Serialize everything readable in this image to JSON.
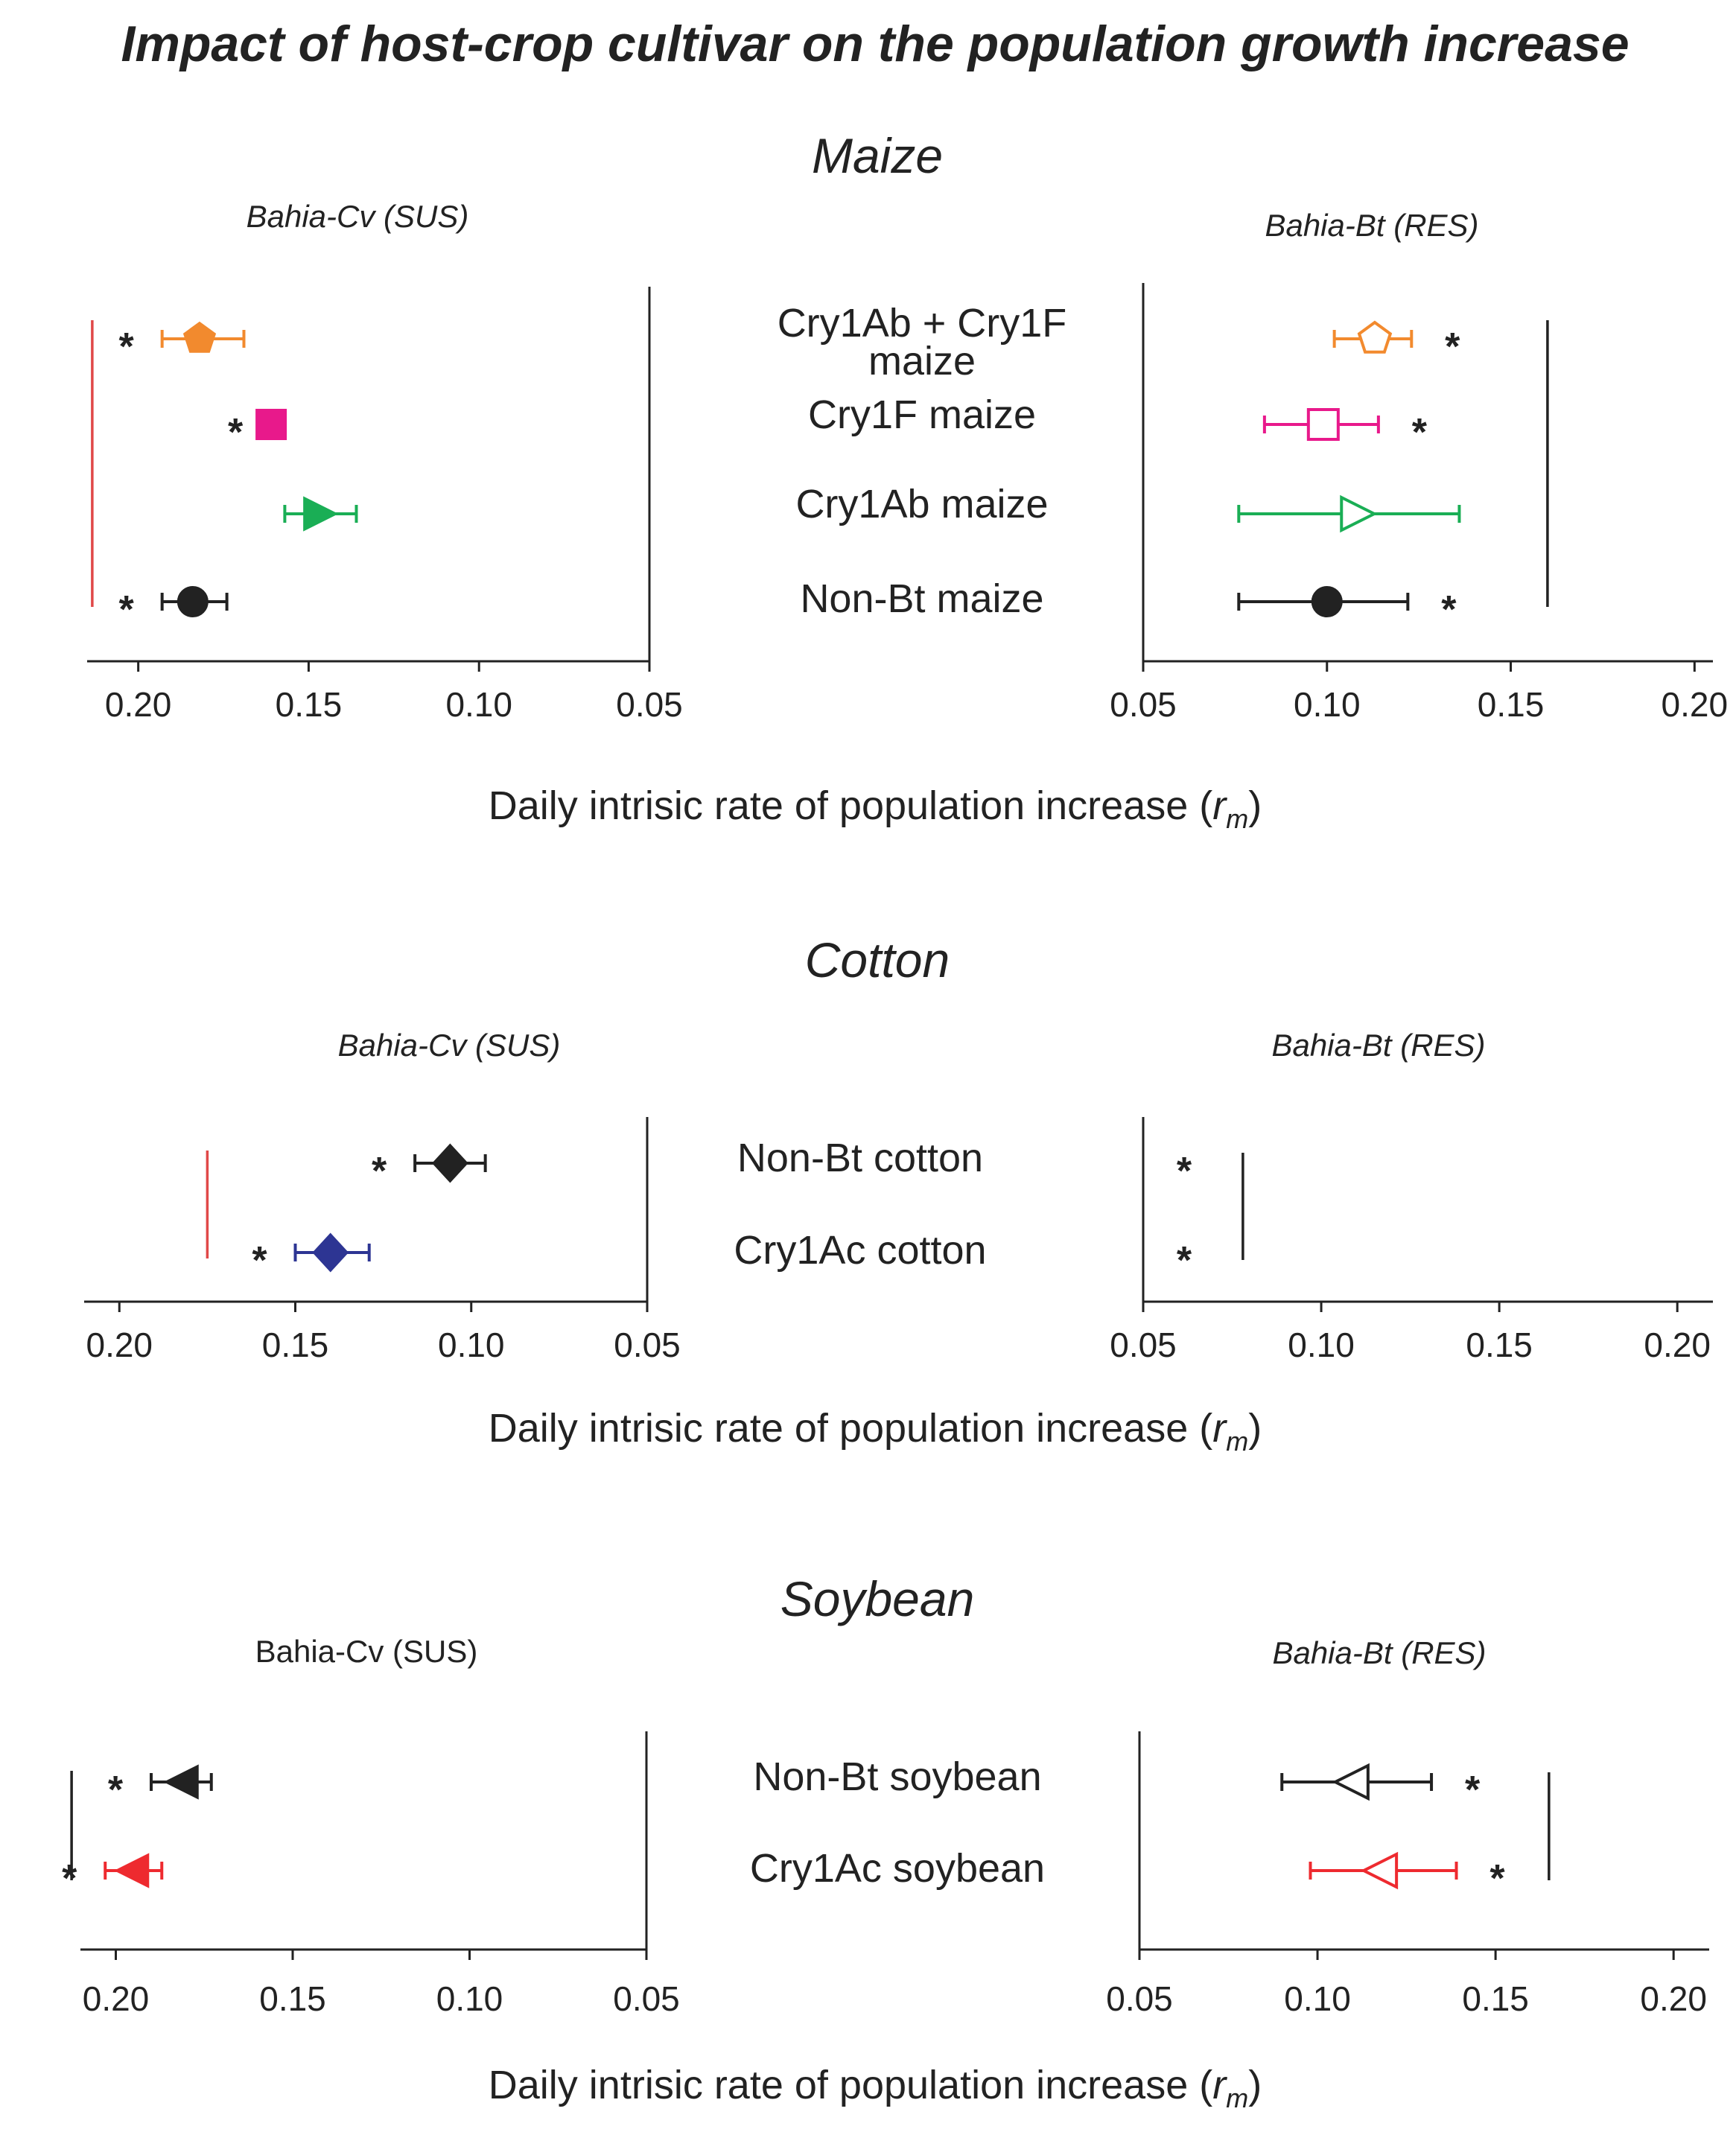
{
  "title": "Impact of host-crop cultivar on the population growth increase",
  "axis_label": {
    "text": "Daily intrisic rate of population increase (",
    "symbol": "r",
    "subscript": "m",
    "close": ")"
  },
  "colors": {
    "black": "#222222",
    "orange": "#f28a2e",
    "magenta": "#e8198b",
    "green": "#1aae55",
    "blue": "#2d3593",
    "red": "#ee2a2f",
    "ref_red": "#e04848"
  },
  "chart_data": [
    {
      "type": "scatter",
      "panel": "maize",
      "title": "Maize",
      "categories": [
        {
          "label": "Cry1Ab + Cry1F",
          "label2": "maize",
          "color": "#f28a2e"
        },
        {
          "label": "Cry1F maize",
          "color": "#e8198b"
        },
        {
          "label": "Cry1Ab maize",
          "color": "#1aae55"
        },
        {
          "label": "Non-Bt maize",
          "color": "#222222"
        }
      ],
      "left": {
        "population": "Bahia-Cv (SUS)",
        "italic": true,
        "xlim": [
          0.215,
          0.05
        ],
        "ticks": [
          "0.20",
          "0.15",
          "0.10",
          "0.05"
        ],
        "reference": {
          "x": 0.2135,
          "color": "#e04848"
        },
        "series": [
          {
            "category": 0,
            "value": 0.182,
            "lo": 0.193,
            "hi": 0.169,
            "marker": "pentagon",
            "filled": true,
            "star": true
          },
          {
            "category": 1,
            "value": 0.161,
            "lo": null,
            "hi": null,
            "marker": "square",
            "filled": true,
            "star": true
          },
          {
            "category": 2,
            "value": 0.147,
            "lo": 0.157,
            "hi": 0.136,
            "marker": "triangle-right",
            "filled": true,
            "star": false
          },
          {
            "category": 3,
            "value": 0.184,
            "lo": 0.193,
            "hi": 0.174,
            "marker": "circle",
            "filled": true,
            "star": true
          }
        ]
      },
      "right": {
        "population": "Bahia-Bt (RES)",
        "italic": true,
        "xlim": [
          0.05,
          0.205
        ],
        "ticks": [
          "0.05",
          "0.10",
          "0.15",
          "0.20"
        ],
        "reference": {
          "x": 0.16,
          "color": "#222222"
        },
        "series": [
          {
            "category": 0,
            "value": 0.113,
            "lo": 0.102,
            "hi": 0.123,
            "marker": "pentagon",
            "filled": false,
            "star": true
          },
          {
            "category": 1,
            "value": 0.099,
            "lo": 0.083,
            "hi": 0.114,
            "marker": "square",
            "filled": false,
            "star": true
          },
          {
            "category": 2,
            "value": 0.108,
            "lo": 0.076,
            "hi": 0.136,
            "marker": "triangle-right",
            "filled": false,
            "star": false
          },
          {
            "category": 3,
            "value": 0.1,
            "lo": 0.076,
            "hi": 0.122,
            "marker": "circle",
            "filled": true,
            "star": true
          }
        ]
      }
    },
    {
      "type": "scatter",
      "panel": "cotton",
      "title": "Cotton",
      "categories": [
        {
          "label": "Non-Bt cotton",
          "color": "#222222"
        },
        {
          "label": "Cry1Ac cotton",
          "color": "#2d3593"
        }
      ],
      "left": {
        "population": "Bahia-Cv (SUS)",
        "italic": true,
        "xlim": [
          0.21,
          0.05
        ],
        "ticks": [
          "0.20",
          "0.15",
          "0.10",
          "0.05"
        ],
        "reference": {
          "x": 0.175,
          "color": "#e04848"
        },
        "series": [
          {
            "category": 0,
            "value": 0.106,
            "lo": 0.116,
            "hi": 0.096,
            "marker": "diamond",
            "filled": true,
            "star": true
          },
          {
            "category": 1,
            "value": 0.14,
            "lo": 0.15,
            "hi": 0.129,
            "marker": "diamond",
            "filled": true,
            "star": true
          }
        ]
      },
      "right": {
        "population": "Bahia-Bt (RES)",
        "italic": true,
        "xlim": [
          0.05,
          0.21
        ],
        "ticks": [
          "0.05",
          "0.10",
          "0.15",
          "0.20"
        ],
        "reference": {
          "x": 0.078,
          "color": "#222222"
        },
        "series": [
          {
            "category": 0,
            "value": null,
            "lo": null,
            "hi": null,
            "marker": "none",
            "filled": false,
            "star": true
          },
          {
            "category": 1,
            "value": null,
            "lo": null,
            "hi": null,
            "marker": "none",
            "filled": false,
            "star": true
          }
        ]
      }
    },
    {
      "type": "scatter",
      "panel": "soybean",
      "title": "Soybean",
      "categories": [
        {
          "label": "Non-Bt soybean",
          "color": "#222222"
        },
        {
          "label": "Cry1Ac soybean",
          "color": "#ee2a2f"
        }
      ],
      "left": {
        "population": "Bahia-Cv (SUS)",
        "italic": false,
        "xlim": [
          0.21,
          0.05
        ],
        "ticks": [
          "0.20",
          "0.15",
          "0.10",
          "0.05"
        ],
        "reference": {
          "x": 0.2125,
          "color": "#222222"
        },
        "series": [
          {
            "category": 0,
            "value": 0.181,
            "lo": 0.19,
            "hi": 0.173,
            "marker": "triangle-left",
            "filled": true,
            "star": true
          },
          {
            "category": 1,
            "value": 0.195,
            "lo": 0.203,
            "hi": 0.187,
            "marker": "triangle-left",
            "filled": true,
            "star": true
          }
        ]
      },
      "right": {
        "population": "Bahia-Bt (RES)",
        "italic": true,
        "xlim": [
          0.05,
          0.21
        ],
        "ticks": [
          "0.05",
          "0.10",
          "0.15",
          "0.20"
        ],
        "reference": {
          "x": 0.165,
          "color": "#222222"
        },
        "series": [
          {
            "category": 0,
            "value": 0.11,
            "lo": 0.09,
            "hi": 0.132,
            "marker": "triangle-left",
            "filled": false,
            "star": true
          },
          {
            "category": 1,
            "value": 0.118,
            "lo": 0.098,
            "hi": 0.139,
            "marker": "triangle-left",
            "filled": false,
            "star": true
          }
        ]
      }
    }
  ]
}
